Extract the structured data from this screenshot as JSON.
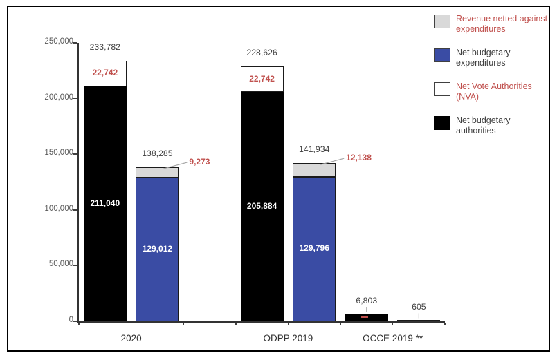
{
  "window": {
    "background": "#ffffff",
    "border_color": "#000000"
  },
  "colors": {
    "red_text": "#C0504D",
    "dark_text": "#404040",
    "axis_text": "#595959",
    "axis_line": "#333333",
    "bar_border": "#1a1a1a",
    "leader_line": "#A6A6A6"
  },
  "chart_data": {
    "type": "bar",
    "subtype": "stacked-clustered",
    "title": "",
    "y_axis": {
      "min": 0,
      "max": 250000,
      "tick_step": 50000,
      "tick_labels": [
        "0",
        "50,000",
        "100,000",
        "150,000",
        "200,000",
        "250,000"
      ]
    },
    "x_axis": {
      "categories": [
        "2020",
        "ODPP 2019",
        "OCCE 2019 **"
      ]
    },
    "series_colors": {
      "black": "#000000",
      "blue": "#3A4CA4",
      "gray": "#D9D9D9",
      "white": "#FFFFFF"
    },
    "legend": {
      "position": "top-right",
      "items": [
        {
          "series": "Revenue netted against expenditures",
          "swatch": "gray",
          "text_color": "red"
        },
        {
          "series": "Net budgetary expenditures",
          "swatch": "blue",
          "text_color": "dark"
        },
        {
          "series": "Net Vote Authorities (NVA)",
          "swatch": "white",
          "text_color": "red"
        },
        {
          "series": "Net budgetary authorities",
          "swatch": "black",
          "text_color": "dark"
        }
      ]
    },
    "groups": [
      {
        "category": "2020",
        "bars": [
          {
            "slot": 0,
            "total": 233782,
            "total_label": "233,782",
            "segments": [
              {
                "series": "Net budgetary authorities",
                "fill": "black",
                "value": 211040,
                "label": "211,040",
                "label_color": "white"
              },
              {
                "series": "Net Vote Authorities (NVA)",
                "fill": "white",
                "value": 22742,
                "label": "22,742",
                "label_color": "red"
              }
            ]
          },
          {
            "slot": 1,
            "total": 138285,
            "total_label": "138,285",
            "segments": [
              {
                "series": "Net budgetary expenditures",
                "fill": "blue",
                "value": 129012,
                "label": "129,012",
                "label_color": "white"
              },
              {
                "series": "Revenue netted against expenditures",
                "fill": "gray",
                "value": 9273,
                "label": "9,273",
                "label_color": "red",
                "callout": "right"
              }
            ]
          }
        ]
      },
      {
        "category": "ODPP 2019",
        "bars": [
          {
            "slot": 3,
            "total": 228626,
            "total_label": "228,626",
            "segments": [
              {
                "series": "Net budgetary authorities",
                "fill": "black",
                "value": 205884,
                "label": "205,884",
                "label_color": "white"
              },
              {
                "series": "Net Vote Authorities (NVA)",
                "fill": "white",
                "value": 22742,
                "label": "22,742",
                "label_color": "red"
              }
            ]
          },
          {
            "slot": 4,
            "total": 141934,
            "total_label": "141,934",
            "segments": [
              {
                "series": "Net budgetary expenditures",
                "fill": "blue",
                "value": 129796,
                "label": "129,796",
                "label_color": "white"
              },
              {
                "series": "Revenue netted against expenditures",
                "fill": "gray",
                "value": 12138,
                "label": "12,138",
                "label_color": "red",
                "callout": "right"
              }
            ]
          }
        ]
      },
      {
        "category": "OCCE 2019 **",
        "bars": [
          {
            "slot": 5,
            "total": 6803,
            "total_label": "6,803",
            "leader": true,
            "segments": [
              {
                "series": "Net budgetary authorities",
                "fill": "black",
                "value": 6803,
                "label": "",
                "label_color": "white"
              }
            ]
          },
          {
            "slot": 6,
            "total": 605,
            "total_label": "605",
            "leader": true,
            "segments": [
              {
                "series": "Net budgetary expenditures",
                "fill": "white",
                "value": 605,
                "label": "",
                "label_color": "white"
              }
            ]
          }
        ]
      }
    ]
  }
}
